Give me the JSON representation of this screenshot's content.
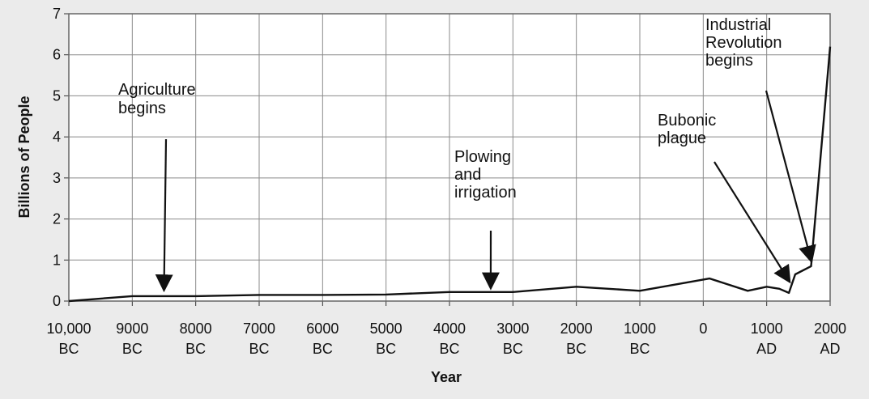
{
  "chart_data": {
    "type": "line",
    "title": "",
    "xlabel": "Year",
    "ylabel": "Billions of People",
    "xlim": [
      -10000,
      2000
    ],
    "ylim": [
      0,
      7
    ],
    "yticks": [
      0,
      1,
      2,
      3,
      4,
      5,
      6,
      7
    ],
    "xticks": [
      {
        "value": -10000,
        "line1": "10,000",
        "line2": "BC"
      },
      {
        "value": -9000,
        "line1": "9000",
        "line2": "BC"
      },
      {
        "value": -8000,
        "line1": "8000",
        "line2": "BC"
      },
      {
        "value": -7000,
        "line1": "7000",
        "line2": "BC"
      },
      {
        "value": -6000,
        "line1": "6000",
        "line2": "BC"
      },
      {
        "value": -5000,
        "line1": "5000",
        "line2": "BC"
      },
      {
        "value": -4000,
        "line1": "4000",
        "line2": "BC"
      },
      {
        "value": -3000,
        "line1": "3000",
        "line2": "BC"
      },
      {
        "value": -2000,
        "line1": "2000",
        "line2": "BC"
      },
      {
        "value": -1000,
        "line1": "1000",
        "line2": "BC"
      },
      {
        "value": 0,
        "line1": "0",
        "line2": ""
      },
      {
        "value": 1000,
        "line1": "1000",
        "line2": "AD"
      },
      {
        "value": 2000,
        "line1": "2000",
        "line2": "AD"
      }
    ],
    "grid": true,
    "series": [
      {
        "x": [
          -10000,
          -9000,
          -8000,
          -7000,
          -6000,
          -5000,
          -4000,
          -3000,
          -2000,
          -1000,
          100,
          700,
          1000,
          1200,
          1350,
          1450,
          1700,
          2000
        ],
        "y": [
          0.0,
          0.12,
          0.12,
          0.15,
          0.15,
          0.16,
          0.22,
          0.22,
          0.35,
          0.25,
          0.55,
          0.25,
          0.35,
          0.3,
          0.2,
          0.65,
          0.85,
          6.2
        ]
      }
    ],
    "annotations": [
      {
        "lines": [
          "Agriculture",
          "begins"
        ],
        "target": {
          "x": -8500,
          "y": 0.3
        }
      },
      {
        "lines": [
          "Plowing",
          "and",
          "irrigation"
        ],
        "target": {
          "x": -3350,
          "y": 0.35
        }
      },
      {
        "lines": [
          "Bubonic",
          "plague"
        ],
        "target": {
          "x": 1350,
          "y": 0.5
        }
      },
      {
        "lines": [
          "Industrial",
          "Revolution",
          "begins"
        ],
        "target": {
          "x": 1700,
          "y": 1.0
        }
      }
    ],
    "line_color": "#111111",
    "grid_color": "#8a8a8a"
  }
}
